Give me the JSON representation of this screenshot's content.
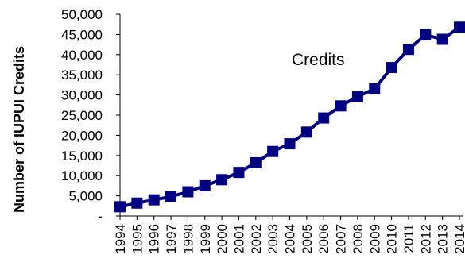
{
  "chart_data": {
    "type": "line",
    "title": "",
    "xlabel": "",
    "ylabel": "Number of IUPUI Credits",
    "annotation": "Credits",
    "ylim": [
      0,
      50000
    ],
    "y_ticks": [
      0,
      5000,
      10000,
      15000,
      20000,
      25000,
      30000,
      35000,
      40000,
      45000,
      50000
    ],
    "y_tick_labels": [
      "-",
      "5,000",
      "10,000",
      "15,000",
      "20,000",
      "25,000",
      "30,000",
      "35,000",
      "40,000",
      "45,000",
      "50,000"
    ],
    "grid": false,
    "legend": "none",
    "categories": [
      "1994",
      "1995",
      "1996",
      "1997",
      "1998",
      "1999",
      "2000",
      "2001",
      "2002",
      "2003",
      "2004",
      "2005",
      "2006",
      "2007",
      "2008",
      "2009",
      "2010",
      "2011",
      "2012",
      "2013",
      "2014"
    ],
    "series": [
      {
        "name": "Credits",
        "color": "#000080",
        "values": [
          2300,
          3200,
          4000,
          4800,
          6000,
          7500,
          9000,
          10800,
          13200,
          16000,
          17900,
          20800,
          24300,
          27300,
          29600,
          31500,
          36800,
          41300,
          44900,
          43800,
          46800
        ]
      }
    ]
  }
}
